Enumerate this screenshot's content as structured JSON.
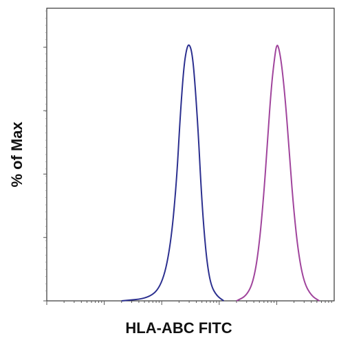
{
  "chart_data": {
    "type": "line",
    "title": "",
    "xlabel": "HLA-ABC FITC",
    "ylabel": "% of Max",
    "xscale": "log",
    "xlim": [
      1,
      100000
    ],
    "ylim": [
      0,
      100
    ],
    "grid": false,
    "legend": "none",
    "series": [
      {
        "color": "#2b2f8f",
        "points": [
          [
            20,
            0
          ],
          [
            60,
            1
          ],
          [
            100,
            6
          ],
          [
            140,
            20
          ],
          [
            180,
            45
          ],
          [
            210,
            72
          ],
          [
            240,
            90
          ],
          [
            270,
            98
          ],
          [
            300,
            100
          ],
          [
            340,
            96
          ],
          [
            380,
            84
          ],
          [
            430,
            66
          ],
          [
            480,
            45
          ],
          [
            540,
            28
          ],
          [
            620,
            14
          ],
          [
            720,
            6
          ],
          [
            900,
            2
          ],
          [
            1200,
            0
          ]
        ]
      },
      {
        "color": "#a0449c",
        "points": [
          [
            2000,
            0
          ],
          [
            3000,
            2
          ],
          [
            4000,
            8
          ],
          [
            5000,
            22
          ],
          [
            6000,
            42
          ],
          [
            7000,
            64
          ],
          [
            8000,
            82
          ],
          [
            9000,
            93
          ],
          [
            10000,
            100
          ],
          [
            11000,
            98
          ],
          [
            12500,
            90
          ],
          [
            14500,
            75
          ],
          [
            17000,
            54
          ],
          [
            20000,
            34
          ],
          [
            24000,
            18
          ],
          [
            30000,
            7
          ],
          [
            40000,
            2
          ],
          [
            55000,
            0
          ]
        ]
      }
    ]
  }
}
